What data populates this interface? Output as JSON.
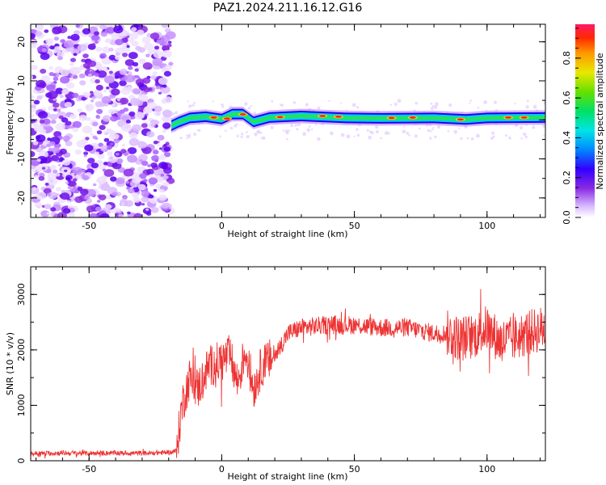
{
  "title": "PAZ1.2024.211.16.12.G16",
  "chart_data": [
    {
      "type": "heatmap",
      "xlabel": "Height of straight line (km)",
      "ylabel": "Frequency (Hz)",
      "xlim": [
        -72,
        122
      ],
      "ylim": [
        -25,
        24.5
      ],
      "xticks": [
        -50,
        0,
        50,
        100
      ],
      "yticks": [
        -20,
        -10,
        0,
        10,
        20
      ],
      "colorbar": {
        "label": "Normalized spectral amplitude",
        "range": [
          0.0,
          0.97
        ],
        "ticks": [
          0.0,
          0.2,
          0.4,
          0.6,
          0.8
        ]
      },
      "noise_region_x": [
        -72,
        -19
      ],
      "signal_band": [
        {
          "x": -19,
          "y": -1.5
        },
        {
          "x": -16,
          "y": -0.5
        },
        {
          "x": -12,
          "y": 0.5
        },
        {
          "x": -6,
          "y": 0.8
        },
        {
          "x": 0,
          "y": 0.2
        },
        {
          "x": 4,
          "y": 1.5
        },
        {
          "x": 8,
          "y": 1.5
        },
        {
          "x": 12,
          "y": -0.5
        },
        {
          "x": 18,
          "y": 0.6
        },
        {
          "x": 30,
          "y": 1.0
        },
        {
          "x": 47,
          "y": 0.5
        },
        {
          "x": 60,
          "y": 0.4
        },
        {
          "x": 80,
          "y": 0.5
        },
        {
          "x": 92,
          "y": 0.1
        },
        {
          "x": 100,
          "y": 0.5
        },
        {
          "x": 122,
          "y": 0.6
        }
      ]
    },
    {
      "type": "line",
      "xlabel": "Height of straight line (km)",
      "ylabel": "SNR (10 * v/v)",
      "xlim": [
        -72,
        122
      ],
      "ylim": [
        0,
        3500
      ],
      "xticks": [
        -50,
        0,
        50,
        100
      ],
      "yticks": [
        0,
        1000,
        2000,
        3000
      ],
      "color": "#ee3333",
      "series": [
        {
          "x": [
            -72,
            -60,
            -50,
            -40,
            -30,
            -20,
            -17,
            -15,
            -12,
            -9,
            -5,
            0,
            3,
            6,
            9,
            12,
            15,
            20,
            25,
            30,
            40,
            50,
            60,
            70,
            80,
            85,
            90,
            95,
            100,
            105,
            110,
            115,
            122
          ],
          "y": [
            130,
            140,
            135,
            140,
            135,
            150,
            180,
            1000,
            1500,
            1300,
            1700,
            1800,
            1900,
            1400,
            2000,
            1300,
            1700,
            1900,
            2300,
            2400,
            2450,
            2450,
            2400,
            2400,
            2300,
            2300,
            2200,
            2250,
            2400,
            2150,
            2200,
            2300,
            2400
          ]
        }
      ]
    }
  ]
}
